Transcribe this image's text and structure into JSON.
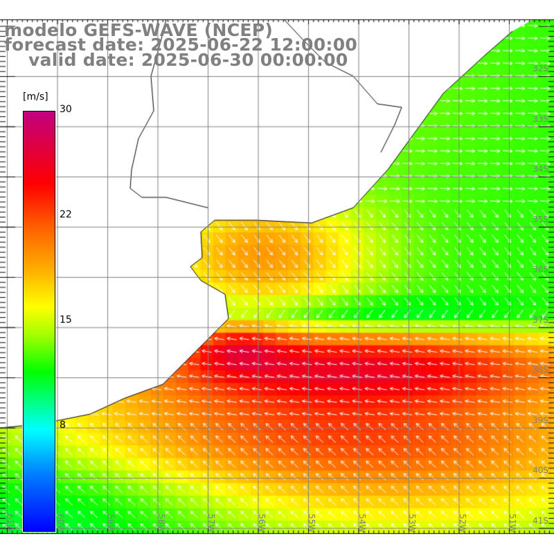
{
  "title": {
    "line1": "modelo GEFS-WAVE (NCEP)",
    "line2": "forecast date: 2025-06-22 12:00:00",
    "line3": "valid date: 2025-06-30 00:00:00"
  },
  "colorbar": {
    "unit": "[m/s]",
    "labels": [
      "30",
      "22",
      "15",
      "8"
    ],
    "range": [
      1,
      30
    ],
    "stops": [
      {
        "v": 1,
        "c": "#0000ff"
      },
      {
        "v": 5,
        "c": "#0080ff"
      },
      {
        "v": 8,
        "c": "#00ffff"
      },
      {
        "v": 10.5,
        "c": "#00ff60"
      },
      {
        "v": 12,
        "c": "#00ff00"
      },
      {
        "v": 14.5,
        "c": "#a0ff00"
      },
      {
        "v": 16.5,
        "c": "#ffff00"
      },
      {
        "v": 19,
        "c": "#ffb000"
      },
      {
        "v": 22,
        "c": "#ff6000"
      },
      {
        "v": 25,
        "c": "#ff0000"
      },
      {
        "v": 30,
        "c": "#c0007f"
      }
    ]
  },
  "axes": {
    "lat_labels": [
      "32S",
      "33S",
      "34S",
      "35S",
      "36S",
      "37S",
      "38S",
      "39S",
      "40S",
      "41S"
    ],
    "lon_labels": [
      "61W",
      "60W",
      "59W",
      "58W",
      "57W",
      "56W",
      "55W",
      "54W",
      "53W",
      "52W",
      "51W"
    ]
  },
  "colors": {
    "grid": "#808080",
    "coast": "#000000",
    "land": "#ffffff",
    "arrow": "#ffffff"
  }
}
